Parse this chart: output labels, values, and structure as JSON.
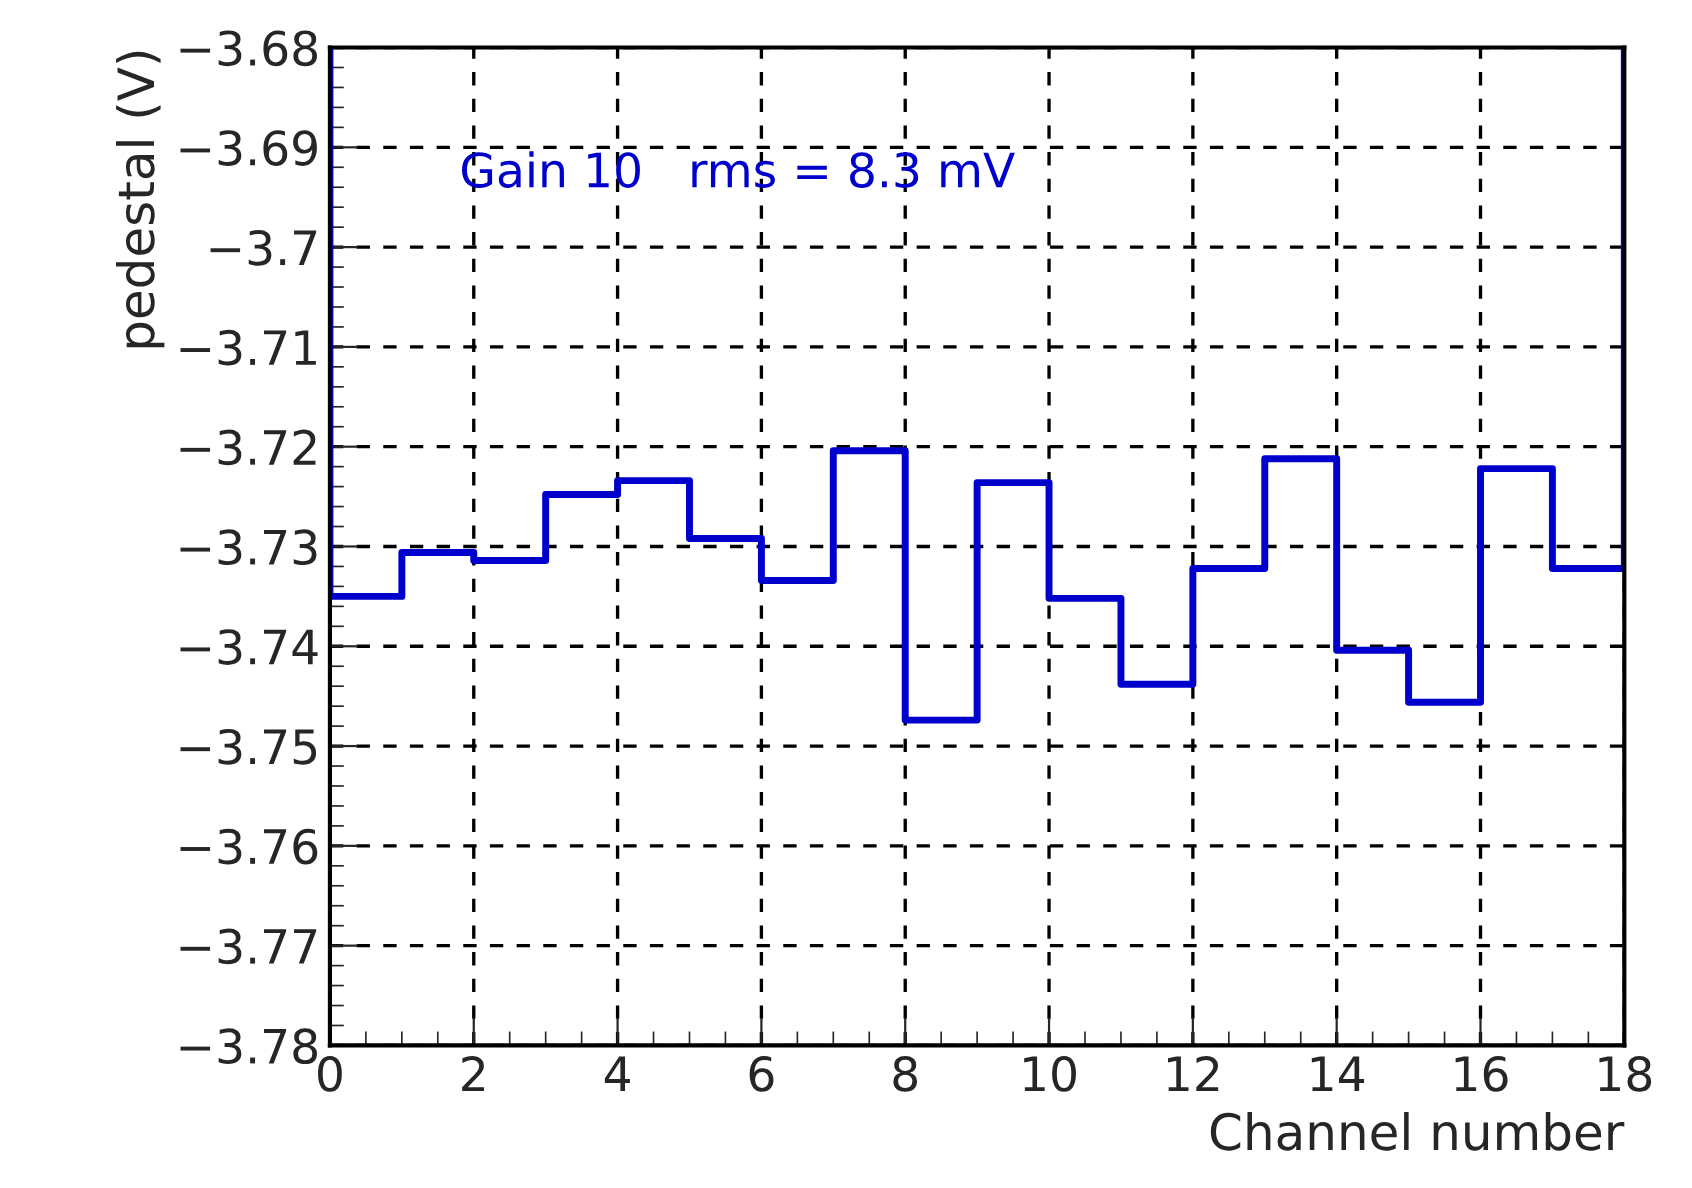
{
  "chart_data": {
    "type": "histogram",
    "xlabel": "Channel number",
    "ylabel": "pedestal (V)",
    "annotations": [
      "Gain 10   rms = 8.3 mV"
    ],
    "bins": [
      0,
      1,
      2,
      3,
      4,
      5,
      6,
      7,
      8,
      9,
      10,
      11,
      12,
      13,
      14,
      15,
      16,
      17,
      18
    ],
    "values": [
      -3.735,
      -3.7306,
      -3.7314,
      -3.7248,
      -3.7234,
      -3.7292,
      -3.7334,
      -3.7204,
      -3.7474,
      -3.7236,
      -3.7352,
      -3.7438,
      -3.7322,
      -3.7212,
      -3.7404,
      -3.7456,
      -3.7222,
      -3.7322
    ],
    "color": "#0000cc",
    "xlim": [
      0,
      18
    ],
    "xticks": [
      0,
      2,
      4,
      6,
      8,
      10,
      12,
      14,
      16,
      18
    ],
    "ylim": [
      -3.78,
      -3.68
    ],
    "yticks": [
      {
        "value": -3.78,
        "label": "−3.78"
      },
      {
        "value": -3.77,
        "label": "−3.77"
      },
      {
        "value": -3.76,
        "label": "−3.76"
      },
      {
        "value": -3.75,
        "label": "−3.75"
      },
      {
        "value": -3.74,
        "label": "−3.74"
      },
      {
        "value": -3.73,
        "label": "−3.73"
      },
      {
        "value": -3.72,
        "label": "−3.72"
      },
      {
        "value": -3.71,
        "label": "−3.71"
      },
      {
        "value": -3.7,
        "label": "−3.7"
      },
      {
        "value": -3.69,
        "label": "−3.69"
      },
      {
        "value": -3.68,
        "label": "−3.68"
      }
    ],
    "grid": true,
    "line_style": "solid"
  }
}
